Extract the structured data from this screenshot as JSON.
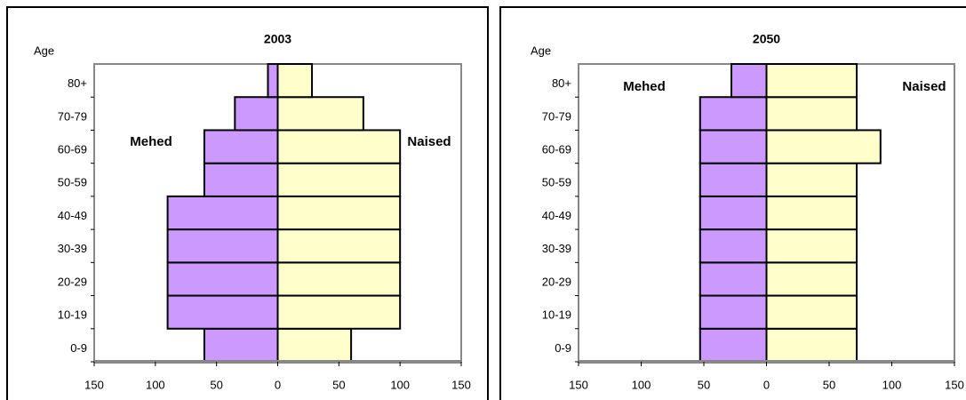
{
  "chart_data": [
    {
      "type": "bar",
      "orientation": "horizontal",
      "title": "2003",
      "ylabel": "Age",
      "categories": [
        "0-9",
        "10-19",
        "20-29",
        "30-39",
        "40-49",
        "50-59",
        "60-69",
        "70-79",
        "80+"
      ],
      "series": [
        {
          "name": "Mehed",
          "color": "#cc99ff",
          "values": [
            -60,
            -90,
            -90,
            -90,
            -90,
            -60,
            -60,
            -35,
            -8
          ]
        },
        {
          "name": "Naised",
          "color": "#ffffcc",
          "values": [
            60,
            100,
            100,
            100,
            100,
            100,
            100,
            70,
            28
          ]
        }
      ],
      "xlim": [
        -150,
        150
      ],
      "xticks": [
        {
          "value": -150,
          "label": "150"
        },
        {
          "value": -100,
          "label": "100"
        },
        {
          "value": -50,
          "label": "50"
        },
        0,
        50,
        100,
        150
      ]
    },
    {
      "type": "bar",
      "orientation": "horizontal",
      "title": "2050",
      "ylabel": "Age",
      "categories": [
        "0-9",
        "10-19",
        "20-29",
        "30-39",
        "40-49",
        "50-59",
        "60-69",
        "70-79",
        "80+"
      ],
      "series": [
        {
          "name": "Mehed",
          "color": "#cc99ff",
          "values": [
            -53,
            -53,
            -53,
            -53,
            -53,
            -53,
            -53,
            -53,
            -28
          ]
        },
        {
          "name": "Naised",
          "color": "#ffffcc",
          "values": [
            72,
            72,
            72,
            72,
            72,
            72,
            91,
            72,
            72
          ]
        }
      ],
      "xlim": [
        -150,
        150
      ],
      "xticks": [
        {
          "value": -150,
          "label": "150"
        },
        {
          "value": -100,
          "label": "100"
        },
        {
          "value": -50,
          "label": "50"
        },
        0,
        50,
        100,
        150
      ]
    }
  ]
}
